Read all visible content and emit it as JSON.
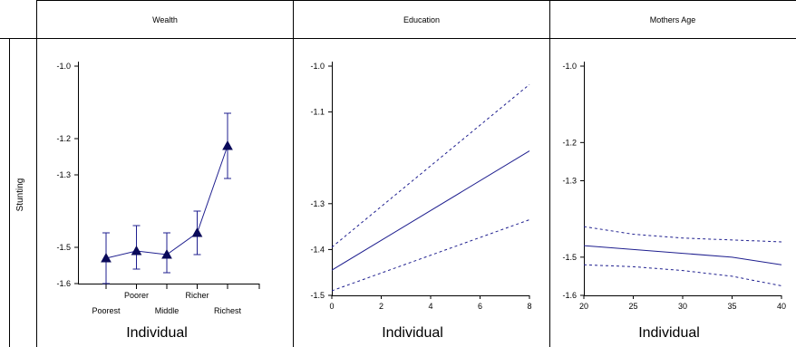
{
  "row_label": "Stunting",
  "colors": {
    "series": "#1f1f8f",
    "axis": "#000000",
    "frame": "#000000"
  },
  "chart_data": [
    {
      "type": "line",
      "panel_title": "Wealth",
      "xlabel": "Individual",
      "categories": [
        "Poorest",
        "Poorer",
        "Middle",
        "Richer",
        "Richest"
      ],
      "yticks": [
        "-1.0",
        "-1.2",
        "-1.3",
        "-1.5",
        "-1.6"
      ],
      "ytick_values": [
        -1.0,
        -1.2,
        -1.3,
        -1.5,
        -1.6
      ],
      "ylim": [
        -1.6,
        -1.0
      ],
      "marker": "triangle",
      "series": [
        {
          "values": [
            -1.53,
            -1.51,
            -1.52,
            -1.46,
            -1.22
          ],
          "lower": [
            -1.6,
            -1.56,
            -1.57,
            -1.52,
            -1.31
          ],
          "upper": [
            -1.46,
            -1.44,
            -1.46,
            -1.4,
            -1.13
          ]
        }
      ]
    },
    {
      "type": "line",
      "panel_title": "Education",
      "xlabel": "Individual",
      "xticks": [
        "0",
        "2",
        "4",
        "6",
        "8"
      ],
      "xtick_values": [
        0,
        2,
        4,
        6,
        8
      ],
      "xlim": [
        0,
        8
      ],
      "yticks": [
        "-1.0",
        "-1.1",
        "-1.3",
        "-1.4",
        "-1.5"
      ],
      "ytick_values": [
        -1.0,
        -1.1,
        -1.3,
        -1.4,
        -1.5
      ],
      "ylim": [
        -1.5,
        -1.0
      ],
      "series": [
        {
          "x": [
            0,
            8
          ],
          "y": [
            -1.445,
            -1.185
          ],
          "style": "solid"
        },
        {
          "x": [
            0,
            8
          ],
          "y": [
            -1.395,
            -1.04
          ],
          "style": "dashed"
        },
        {
          "x": [
            0,
            8
          ],
          "y": [
            -1.49,
            -1.335
          ],
          "style": "dashed"
        }
      ]
    },
    {
      "type": "line",
      "panel_title": "Mothers Age",
      "xlabel": "Individual",
      "xticks": [
        "20",
        "25",
        "30",
        "35",
        "40"
      ],
      "xtick_values": [
        20,
        25,
        30,
        35,
        40
      ],
      "xlim": [
        20,
        40
      ],
      "yticks": [
        "-1.0",
        "-1.2",
        "-1.3",
        "-1.5",
        "-1.6"
      ],
      "ytick_values": [
        -1.0,
        -1.2,
        -1.3,
        -1.5,
        -1.6
      ],
      "ylim": [
        -1.6,
        -1.0
      ],
      "series": [
        {
          "x": [
            20,
            25,
            30,
            35,
            40
          ],
          "y": [
            -1.47,
            -1.48,
            -1.49,
            -1.5,
            -1.52
          ],
          "style": "solid"
        },
        {
          "x": [
            20,
            25,
            30,
            35,
            40
          ],
          "y": [
            -1.42,
            -1.44,
            -1.45,
            -1.455,
            -1.46
          ],
          "style": "dashed"
        },
        {
          "x": [
            20,
            25,
            30,
            35,
            40
          ],
          "y": [
            -1.52,
            -1.525,
            -1.535,
            -1.55,
            -1.575
          ],
          "style": "dashed"
        }
      ]
    }
  ]
}
